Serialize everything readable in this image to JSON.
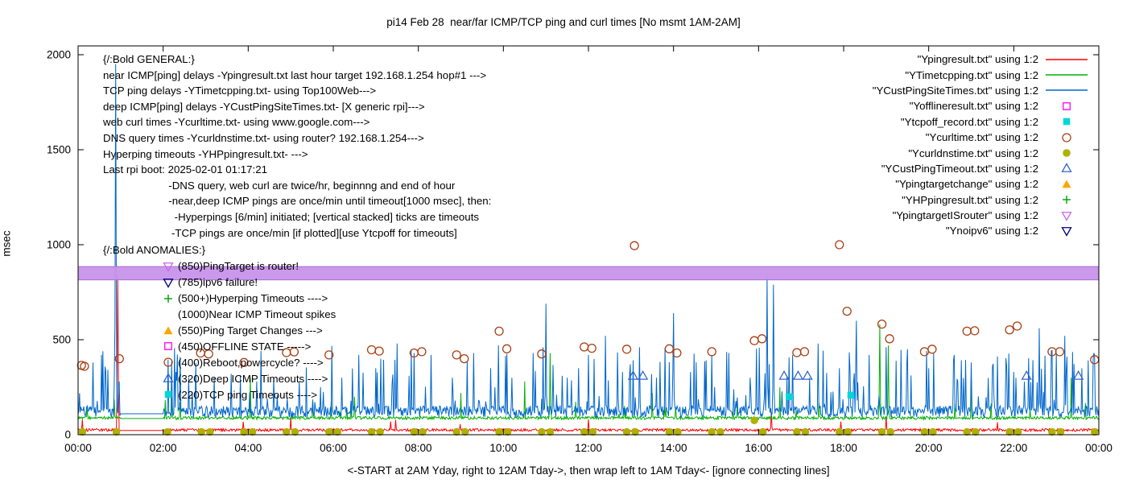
{
  "title": "pi14 Feb 28  near/far ICMP/TCP ping and curl times [No msmt 1AM-2AM]",
  "axes": {
    "ylabel": "msec",
    "caption": "<-START at 2AM Yday, right to 12AM Tday->, then wrap left to 1AM Tday<- [ignore connecting lines]"
  },
  "annotations": {
    "general_lines": [
      "{/:Bold GENERAL:}",
      "near ICMP[ping] delays -Ypingresult.txt last hour target 192.168.1.254 hop#1 --->",
      "TCP ping delays -YTimetcpping.txt- using Top100Web--->",
      "deep ICMP[ping] delays -YCustPingSiteTimes.txt- [X generic rpi]--->",
      "web curl times -Ycurltime.txt- using www.google.com--->",
      "DNS query times -Ycurldnstime.txt- using router? 192.168.1.254--->",
      "Hyperping timeouts -YHPpingresult.txt- --->",
      "Last rpi boot: 2025-02-01 01:17:21",
      "                      -DNS query, web curl are twice/hr, beginnng and end of hour",
      "                      -near,deep ICMP pings are once/min until timeout[1000 msec], then:",
      "                        -Hyperpings [6/min] initiated; [vertical stacked] ticks are timeouts",
      "                       -TCP pings are once/min [if plotted][use Ytcpoff for timeouts]"
    ],
    "anomalies_heading": "{/:Bold ANOMALIES:}",
    "anomalies": [
      {
        "marker": "triangle-down-open",
        "color": "#cc66ee",
        "text": "(850)PingTarget is router!"
      },
      {
        "marker": "triangle-down-open",
        "color": "#000080",
        "text": "(785)ipv6 failure!"
      },
      {
        "marker": "plus",
        "color": "#00a000",
        "text": "(500+)Hyperping Timeouts ---->"
      },
      {
        "marker": "none",
        "color": "#000000",
        "text": "(1000)Near ICMP Timeout spikes"
      },
      {
        "marker": "triangle-up-filled",
        "color": "#ffa500",
        "text": "(550)Ping Target Changes --->"
      },
      {
        "marker": "square-open",
        "color": "#ff00ff",
        "text": "(450)OFFLINE STATE ----->"
      },
      {
        "marker": "circle-open",
        "color": "#aa4015",
        "text": "(400)Reboot,powercycle? ---->"
      },
      {
        "marker": "triangle-up-open",
        "color": "#3366cc",
        "text": "(320)Deep ICMP Timeouts ---->"
      },
      {
        "marker": "square-filled",
        "color": "#00d6d6",
        "text": "(220)TCP ping Timeouts ---->"
      }
    ]
  },
  "legend": {
    "items": [
      {
        "label": "\"Ypingresult.txt\" using 1:2",
        "marker": "line",
        "color": "#ff0000"
      },
      {
        "label": "\"YTimetcpping.txt\" using 1:2",
        "marker": "line",
        "color": "#00b000"
      },
      {
        "label": "\"YCustPingSiteTimes.txt\" using 1:2",
        "marker": "line",
        "color": "#0066cc"
      },
      {
        "label": "\"Yofflineresult.txt\" using 1:2",
        "marker": "square-open",
        "color": "#ff00ff"
      },
      {
        "label": "\"Ytcpoff_record.txt\" using 1:2",
        "marker": "square-filled",
        "color": "#00d6d6"
      },
      {
        "label": "\"Ycurltime.txt\" using 1:2",
        "marker": "circle-open",
        "color": "#aa4015"
      },
      {
        "label": "\"Ycurldnstime.txt\" using 1:2",
        "marker": "circle-filled",
        "color": "#b0b000"
      },
      {
        "label": "\"YCustPingTimeout.txt\" using 1:2",
        "marker": "triangle-up-open",
        "color": "#3366cc"
      },
      {
        "label": "\"Ypingtargetchange\" using 1:2",
        "marker": "triangle-up-filled",
        "color": "#ffa500"
      },
      {
        "label": "\"YHPpingresult.txt\" using 1:2",
        "marker": "plus",
        "color": "#00a000"
      },
      {
        "label": "\"YpingtargetISrouter\" using 1:2",
        "marker": "triangle-down-open",
        "color": "#cc66ee"
      },
      {
        "label": "\"Ynoipv6\" using 1:2",
        "marker": "triangle-down-open",
        "color": "#000080"
      }
    ]
  },
  "chart_data": {
    "type": "line",
    "title": "pi14 Feb 28  near/far ICMP/TCP ping and curl times [No msmt 1AM-2AM]",
    "xlabel": "<-START at 2AM Yday, right to 12AM Tday->, then wrap left to 1AM Tday<- [ignore connecting lines]",
    "ylabel": "msec",
    "xlim": [
      0,
      24
    ],
    "ylim": [
      0,
      2000
    ],
    "grid": false,
    "legend_position": "top-right",
    "gap_hours": [
      1,
      2
    ],
    "x_ticks": [
      {
        "v": 0,
        "label": "00:00"
      },
      {
        "v": 2,
        "label": "02:00"
      },
      {
        "v": 4,
        "label": "04:00"
      },
      {
        "v": 6,
        "label": "06:00"
      },
      {
        "v": 8,
        "label": "08:00"
      },
      {
        "v": 10,
        "label": "10:00"
      },
      {
        "v": 12,
        "label": "12:00"
      },
      {
        "v": 14,
        "label": "14:00"
      },
      {
        "v": 16,
        "label": "16:00"
      },
      {
        "v": 18,
        "label": "18:00"
      },
      {
        "v": 20,
        "label": "20:00"
      },
      {
        "v": 22,
        "label": "22:00"
      },
      {
        "v": 24,
        "label": "00:00"
      }
    ],
    "y_ticks": [
      0,
      500,
      1000,
      1500,
      2000
    ],
    "series": [
      {
        "name": "Ypingresult.txt (near ICMP ping delay)",
        "color": "#ff0000",
        "baseline": 22,
        "noise": 7,
        "spike_prob": 0.01,
        "spike_max": 50,
        "spikes": [
          [
            0.93,
            840
          ],
          [
            5.0,
            90
          ],
          [
            12.0,
            80
          ],
          [
            16.3,
            120
          ],
          [
            19.0,
            95
          ]
        ]
      },
      {
        "name": "YTimetcpping.txt (TCP ping delay)",
        "color": "#00b000",
        "baseline": 85,
        "noise": 8,
        "spike_prob": 0.02,
        "spike_max": 100,
        "spikes": [
          [
            2.2,
            200
          ],
          [
            4.05,
            300
          ],
          [
            6.5,
            200
          ],
          [
            9.0,
            220
          ],
          [
            10.5,
            280
          ],
          [
            11.1,
            430
          ],
          [
            13.5,
            220
          ],
          [
            16.5,
            250
          ],
          [
            18.85,
            580
          ],
          [
            19.05,
            470
          ],
          [
            21.0,
            300
          ],
          [
            23.35,
            300
          ]
        ]
      },
      {
        "name": "YCustPingSiteTimes.txt (deep ICMP ping delay)",
        "color": "#0066cc",
        "baseline": 110,
        "noise": 30,
        "spike_prob": 0.12,
        "spike_max": 330,
        "spikes": [
          [
            0.35,
            380
          ],
          [
            0.55,
            420
          ],
          [
            0.88,
            1950
          ],
          [
            2.3,
            330
          ],
          [
            2.6,
            300
          ],
          [
            3.2,
            300
          ],
          [
            3.6,
            320
          ],
          [
            4.2,
            280
          ],
          [
            4.6,
            300
          ],
          [
            5.2,
            280
          ],
          [
            5.7,
            250
          ],
          [
            6.2,
            300
          ],
          [
            6.6,
            420
          ],
          [
            7.0,
            350
          ],
          [
            7.5,
            480
          ],
          [
            7.9,
            430
          ],
          [
            8.3,
            420
          ],
          [
            8.8,
            300
          ],
          [
            9.3,
            430
          ],
          [
            9.7,
            350
          ],
          [
            10.2,
            300
          ],
          [
            10.7,
            430
          ],
          [
            11.0,
            690
          ],
          [
            11.5,
            300
          ],
          [
            12.0,
            420
          ],
          [
            12.4,
            520
          ],
          [
            12.8,
            330
          ],
          [
            13.2,
            460
          ],
          [
            13.6,
            300
          ],
          [
            14.0,
            640
          ],
          [
            14.4,
            330
          ],
          [
            14.9,
            420
          ],
          [
            15.3,
            430
          ],
          [
            15.8,
            300
          ],
          [
            16.2,
            830
          ],
          [
            16.35,
            790
          ],
          [
            16.8,
            420
          ],
          [
            17.2,
            300
          ],
          [
            17.4,
            480
          ],
          [
            17.9,
            350
          ],
          [
            18.3,
            600
          ],
          [
            18.6,
            420
          ],
          [
            19.0,
            460
          ],
          [
            19.5,
            450
          ],
          [
            20.0,
            350
          ],
          [
            20.6,
            420
          ],
          [
            21.0,
            380
          ],
          [
            21.5,
            360
          ],
          [
            22.0,
            330
          ],
          [
            22.6,
            560
          ],
          [
            23.0,
            430
          ],
          [
            23.2,
            520
          ],
          [
            23.6,
            350
          ],
          [
            23.9,
            420
          ]
        ]
      }
    ],
    "scatter": [
      {
        "name": "Ycurltime.txt (web curl times)",
        "marker": "circle-open",
        "color": "#aa4015",
        "points": [
          [
            0.08,
            365
          ],
          [
            0.15,
            360
          ],
          [
            0.97,
            400
          ],
          [
            2.88,
            430
          ],
          [
            3.07,
            425
          ],
          [
            3.9,
            380
          ],
          [
            4.9,
            432
          ],
          [
            5.08,
            436
          ],
          [
            5.9,
            420
          ],
          [
            6.9,
            447
          ],
          [
            7.08,
            440
          ],
          [
            7.9,
            430
          ],
          [
            8.08,
            437
          ],
          [
            8.9,
            420
          ],
          [
            9.08,
            400
          ],
          [
            9.9,
            545
          ],
          [
            10.08,
            452
          ],
          [
            10.9,
            425
          ],
          [
            11.9,
            462
          ],
          [
            12.08,
            455
          ],
          [
            12.9,
            450
          ],
          [
            13.08,
            995
          ],
          [
            13.9,
            452
          ],
          [
            14.08,
            430
          ],
          [
            14.9,
            437
          ],
          [
            15.9,
            495
          ],
          [
            16.08,
            505
          ],
          [
            16.9,
            432
          ],
          [
            17.08,
            437
          ],
          [
            17.9,
            1000
          ],
          [
            18.08,
            650
          ],
          [
            18.9,
            582
          ],
          [
            19.08,
            505
          ],
          [
            19.9,
            437
          ],
          [
            20.08,
            450
          ],
          [
            20.9,
            545
          ],
          [
            21.08,
            547
          ],
          [
            21.9,
            552
          ],
          [
            22.08,
            572
          ],
          [
            22.9,
            437
          ],
          [
            23.08,
            437
          ],
          [
            23.9,
            395
          ]
        ]
      },
      {
        "name": "Ycurldnstime.txt (DNS query times)",
        "marker": "circle-filled",
        "color": "#b0b000",
        "points": [
          [
            0.1,
            15
          ],
          [
            0.9,
            15
          ],
          [
            2.1,
            15
          ],
          [
            2.9,
            15
          ],
          [
            3.1,
            15
          ],
          [
            3.9,
            15
          ],
          [
            4.1,
            15
          ],
          [
            4.9,
            15
          ],
          [
            5.1,
            15
          ],
          [
            5.9,
            15
          ],
          [
            6.1,
            15
          ],
          [
            6.9,
            15
          ],
          [
            7.1,
            15
          ],
          [
            7.9,
            15
          ],
          [
            8.1,
            15
          ],
          [
            8.9,
            15
          ],
          [
            9.1,
            15
          ],
          [
            9.9,
            15
          ],
          [
            10.1,
            15
          ],
          [
            10.9,
            15
          ],
          [
            11.1,
            15
          ],
          [
            11.9,
            15
          ],
          [
            12.1,
            15
          ],
          [
            12.9,
            15
          ],
          [
            13.1,
            15
          ],
          [
            13.9,
            15
          ],
          [
            14.1,
            15
          ],
          [
            14.9,
            15
          ],
          [
            15.1,
            15
          ],
          [
            15.9,
            75
          ],
          [
            16.1,
            15
          ],
          [
            16.9,
            15
          ],
          [
            17.1,
            15
          ],
          [
            17.9,
            15
          ],
          [
            18.1,
            15
          ],
          [
            18.9,
            15
          ],
          [
            19.1,
            15
          ],
          [
            19.9,
            15
          ],
          [
            20.1,
            15
          ],
          [
            20.9,
            15
          ],
          [
            21.1,
            15
          ],
          [
            21.9,
            15
          ],
          [
            22.1,
            15
          ],
          [
            22.9,
            15
          ],
          [
            23.1,
            15
          ],
          [
            23.9,
            15
          ]
        ]
      },
      {
        "name": "YCustPingTimeout.txt (deep ICMP timeouts)",
        "marker": "triangle-up-open",
        "color": "#3366cc",
        "points": [
          [
            13.05,
            310
          ],
          [
            13.28,
            310
          ],
          [
            16.6,
            310
          ],
          [
            16.93,
            310
          ],
          [
            17.15,
            310
          ],
          [
            22.3,
            310
          ],
          [
            23.52,
            310
          ]
        ]
      },
      {
        "name": "Ytcpoff_record.txt (TCP ping timeouts)",
        "marker": "square-filled",
        "color": "#00d6d6",
        "points": [
          [
            16.72,
            200
          ],
          [
            18.17,
            208
          ]
        ]
      },
      {
        "name": "Yofflineresult.txt (offline state)",
        "marker": "square-open",
        "color": "#ff00ff",
        "points": []
      },
      {
        "name": "Ypingtargetchange (ping target changes)",
        "marker": "triangle-up-filled",
        "color": "#ffa500",
        "points": []
      },
      {
        "name": "YHPpingresult.txt (hyperping timeouts)",
        "marker": "plus",
        "color": "#00a000",
        "points": []
      },
      {
        "name": "Ynoipv6 (ipv6 failure)",
        "marker": "triangle-down-open",
        "color": "#000080",
        "points": []
      }
    ],
    "band": {
      "name": "YpingtargetISrouter (ping target is router)",
      "y": 850,
      "half_height": 35,
      "color": "#c893ea",
      "edge": "#a86fd0",
      "x_from": 0,
      "x_to": 24
    }
  }
}
